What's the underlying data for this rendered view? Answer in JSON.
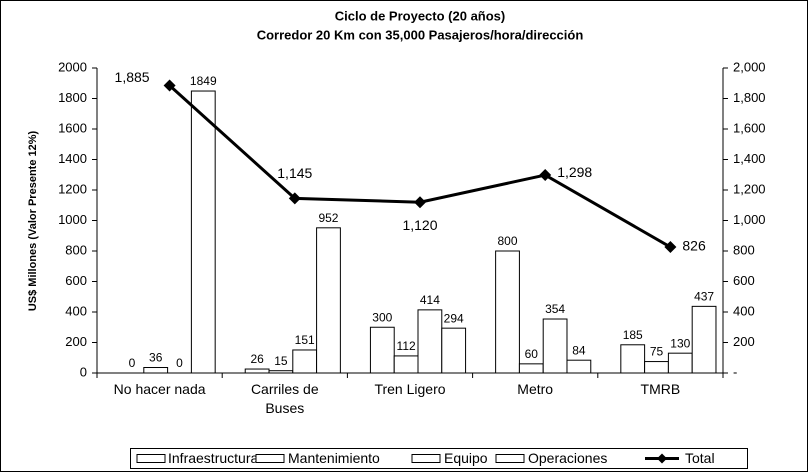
{
  "chart_data": {
    "type": "bar",
    "title": "Ciclo de Proyecto (20 años)",
    "subtitle": "Corredor 20 Km con 35,000 Pasajeros/hora/dirección",
    "y_label": "US$ Millones (Valor Presente 12%)",
    "categories": [
      "No hacer nada",
      "Carriles de Buses",
      "Tren Ligero",
      "Metro",
      "TMRB"
    ],
    "series": [
      {
        "name": "Infraestructura",
        "color": "#ffffff",
        "values": [
          0,
          26,
          300,
          800,
          185
        ]
      },
      {
        "name": "Mantenimiento",
        "color": "#ffffff",
        "values": [
          36,
          15,
          112,
          60,
          75
        ]
      },
      {
        "name": "Equipo",
        "color": "#ffffff",
        "values": [
          0,
          151,
          414,
          354,
          130
        ]
      },
      {
        "name": "Operaciones",
        "color": "#ffffff",
        "values": [
          1849,
          952,
          294,
          84,
          437
        ]
      },
      {
        "name": "Total",
        "type": "line",
        "axis": "y2",
        "color": "#000000",
        "values": [
          1885,
          1145,
          1120,
          1298,
          826
        ],
        "value_labels": [
          "1,885",
          "1,145",
          "1,120",
          "1,298",
          "826"
        ]
      }
    ],
    "ylim": [
      0,
      2000
    ],
    "yticks": [
      0,
      200,
      400,
      600,
      800,
      1000,
      1200,
      1400,
      1600,
      1800,
      2000
    ],
    "y2lim": [
      0,
      2000
    ],
    "y2ticks": [
      {
        "value": 0,
        "label": "-"
      },
      200,
      400,
      600,
      800,
      {
        "value": 1000,
        "label": "1,000"
      },
      {
        "value": 1200,
        "label": "1,200"
      },
      {
        "value": 1400,
        "label": "1,400"
      },
      {
        "value": 1600,
        "label": "1,600"
      },
      {
        "value": 1800,
        "label": "1,800"
      },
      {
        "value": 2000,
        "label": "2,000"
      }
    ],
    "legend": "bottom"
  }
}
